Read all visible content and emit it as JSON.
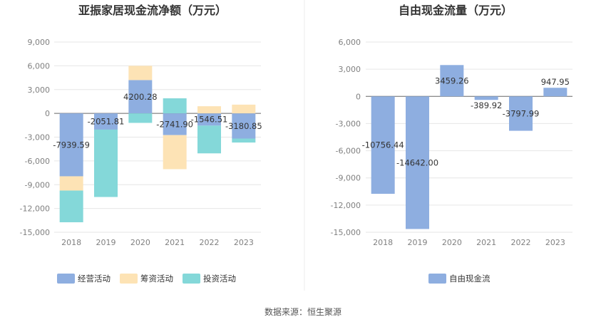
{
  "chart_data": [
    {
      "type": "bar",
      "stacked": true,
      "title": "亚振家居现金流净额（万元）",
      "categories": [
        "2018",
        "2019",
        "2020",
        "2021",
        "2022",
        "2023"
      ],
      "ylim": [
        -15000,
        9000
      ],
      "yticks": [
        "9,000",
        "6,000",
        "3,000",
        "0",
        "-3,000",
        "-6,000",
        "-9,000",
        "-12,000",
        "-15,000"
      ],
      "ytick_values": [
        9000,
        6000,
        3000,
        0,
        -3000,
        -6000,
        -9000,
        -12000,
        -15000
      ],
      "series": [
        {
          "name": "经营活动",
          "color": "#8eaee0",
          "values": [
            -7939.59,
            -2051.81,
            4200.28,
            -2741.9,
            -1546.51,
            -3180.85
          ]
        },
        {
          "name": "筹资活动",
          "color": "#fde3b5",
          "values": [
            -1800,
            0,
            1800,
            -4300,
            900,
            1100
          ]
        },
        {
          "name": "投资活动",
          "color": "#84d8d9",
          "values": [
            -4000,
            -8500,
            -1200,
            1900,
            -3500,
            -500
          ]
        }
      ],
      "data_labels": [
        "-7939.59",
        "-2051.81",
        "4200.28",
        "-2741.90",
        "-1546.51",
        "-3180.85"
      ],
      "grid": true,
      "legend": "bottom"
    },
    {
      "type": "bar",
      "title": "自由现金流量（万元）",
      "categories": [
        "2018",
        "2019",
        "2020",
        "2021",
        "2022",
        "2023"
      ],
      "ylim": [
        -15000,
        6000
      ],
      "yticks": [
        "6,000",
        "3,000",
        "0",
        "-3,000",
        "-6,000",
        "-9,000",
        "-12,000",
        "-15,000"
      ],
      "ytick_values": [
        6000,
        3000,
        0,
        -3000,
        -6000,
        -9000,
        -12000,
        -15000
      ],
      "series": [
        {
          "name": "自由现金流",
          "color": "#8eaee0",
          "values": [
            -10756.44,
            -14642.0,
            3459.26,
            -389.92,
            -3797.99,
            947.95
          ]
        }
      ],
      "data_labels": [
        "-10756.44",
        "-14642.00",
        "3459.26",
        "-389.92",
        "-3797.99",
        "947.95"
      ],
      "grid": true,
      "legend": "bottom"
    }
  ],
  "source": "数据来源：恒生聚源"
}
